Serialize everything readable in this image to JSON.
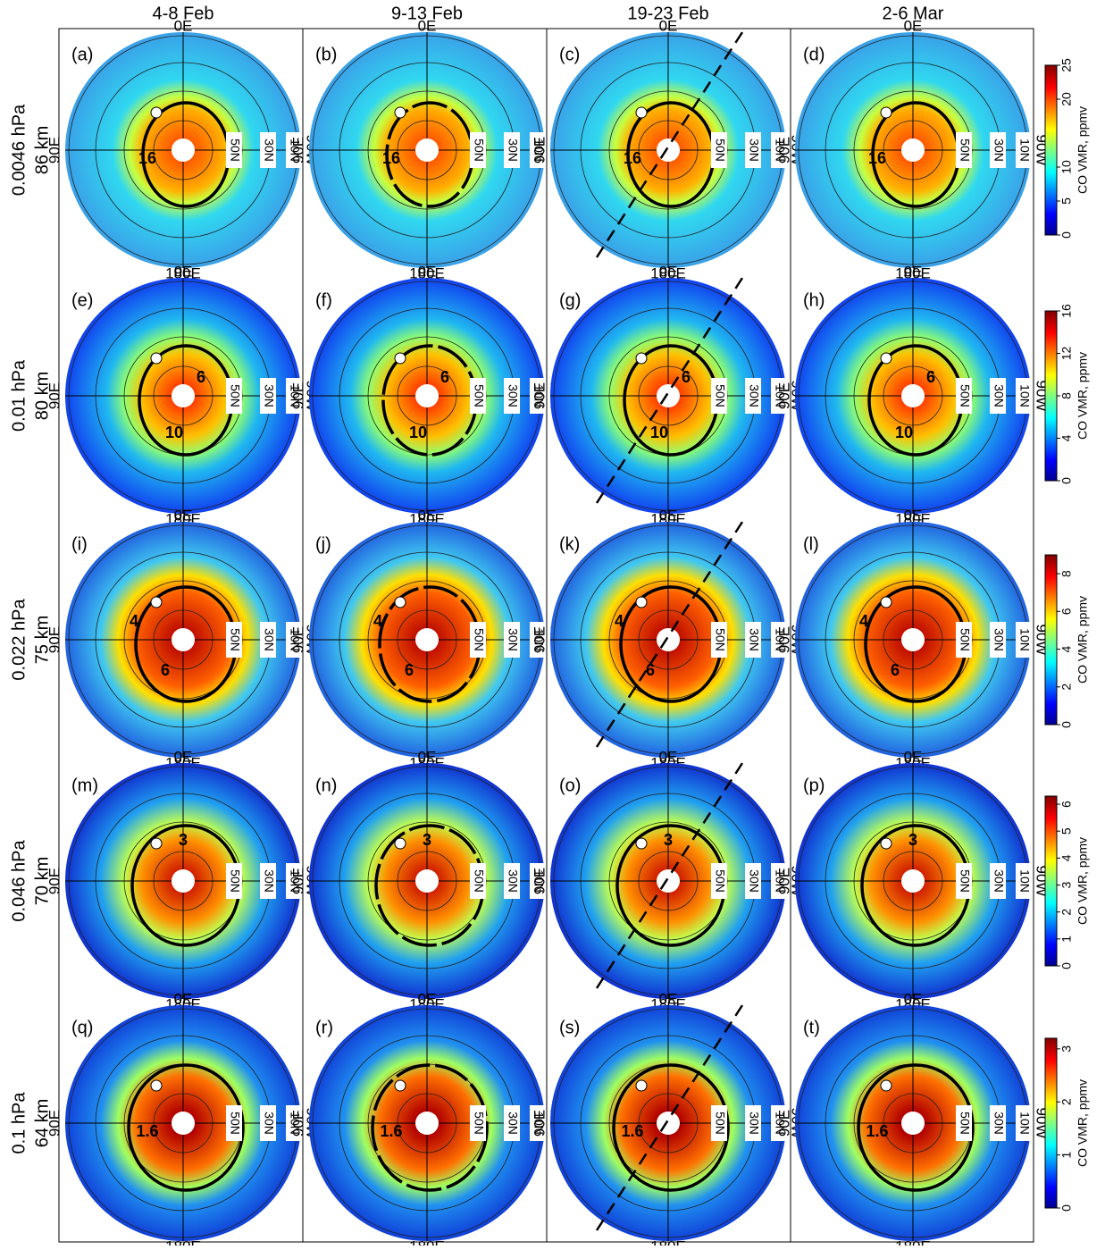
{
  "columns": [
    "4-8 Feb",
    "9-13 Feb",
    "19-23 Feb",
    "2-6 Mar"
  ],
  "map_labels": {
    "north": "0E",
    "south": "180E",
    "west": "90E",
    "east": "90W",
    "lat": [
      "50N",
      "30N",
      "10N"
    ]
  },
  "rows": [
    {
      "pressure": "0.0046 hPa",
      "altitude": "86 km",
      "colorbar": {
        "label": "CO VMR, ppmv",
        "lim": [
          0,
          25
        ],
        "ticks": [
          0,
          5,
          10,
          20,
          25
        ]
      },
      "panels": [
        {
          "label": "(a)",
          "contours": [
            16
          ]
        },
        {
          "label": "(b)",
          "contours": [
            16
          ]
        },
        {
          "label": "(c)",
          "contours": [
            16
          ]
        },
        {
          "label": "(d)",
          "contours": [
            16
          ]
        }
      ]
    },
    {
      "pressure": "0.01 hPa",
      "altitude": "80 km",
      "colorbar": {
        "label": "CO VMR, ppmv",
        "lim": [
          0,
          16
        ],
        "ticks": [
          0,
          4,
          8,
          12,
          16
        ]
      },
      "panels": [
        {
          "label": "(e)",
          "contours": [
            10,
            6
          ]
        },
        {
          "label": "(f)",
          "contours": [
            10,
            6
          ]
        },
        {
          "label": "(g)",
          "contours": [
            10,
            6
          ]
        },
        {
          "label": "(h)",
          "contours": [
            10,
            6
          ]
        }
      ]
    },
    {
      "pressure": "0.022 hPa",
      "altitude": "75 km",
      "colorbar": {
        "label": "CO VMR, ppmv",
        "lim": [
          0,
          9
        ],
        "ticks": [
          0,
          2,
          4,
          6,
          8
        ]
      },
      "panels": [
        {
          "label": "(i)",
          "contours": [
            4,
            6
          ]
        },
        {
          "label": "(j)",
          "contours": [
            4,
            6
          ]
        },
        {
          "label": "(k)",
          "contours": [
            4,
            6
          ]
        },
        {
          "label": "(l)",
          "contours": [
            4,
            6
          ]
        }
      ]
    },
    {
      "pressure": "0.046 hPa",
      "altitude": "70 km",
      "colorbar": {
        "label": "CO VMR, ppmv",
        "lim": [
          0,
          6.3
        ],
        "ticks": [
          0,
          1,
          2,
          3,
          4,
          5,
          6
        ]
      },
      "panels": [
        {
          "label": "(m)",
          "contours": [
            3
          ]
        },
        {
          "label": "(n)",
          "contours": [
            3
          ]
        },
        {
          "label": "(o)",
          "contours": [
            3
          ]
        },
        {
          "label": "(p)",
          "contours": [
            3
          ]
        }
      ]
    },
    {
      "pressure": "0.1 hPa",
      "altitude": "64 km",
      "colorbar": {
        "label": "CO VMR, ppmv",
        "lim": [
          0,
          3.2
        ],
        "ticks": [
          0,
          1,
          2,
          3
        ]
      },
      "panels": [
        {
          "label": "(q)",
          "contours": [
            1.6
          ]
        },
        {
          "label": "(r)",
          "contours": [
            1.6
          ]
        },
        {
          "label": "(s)",
          "contours": [
            1.6
          ]
        },
        {
          "label": "(t)",
          "contours": [
            1.6
          ]
        }
      ]
    }
  ]
}
